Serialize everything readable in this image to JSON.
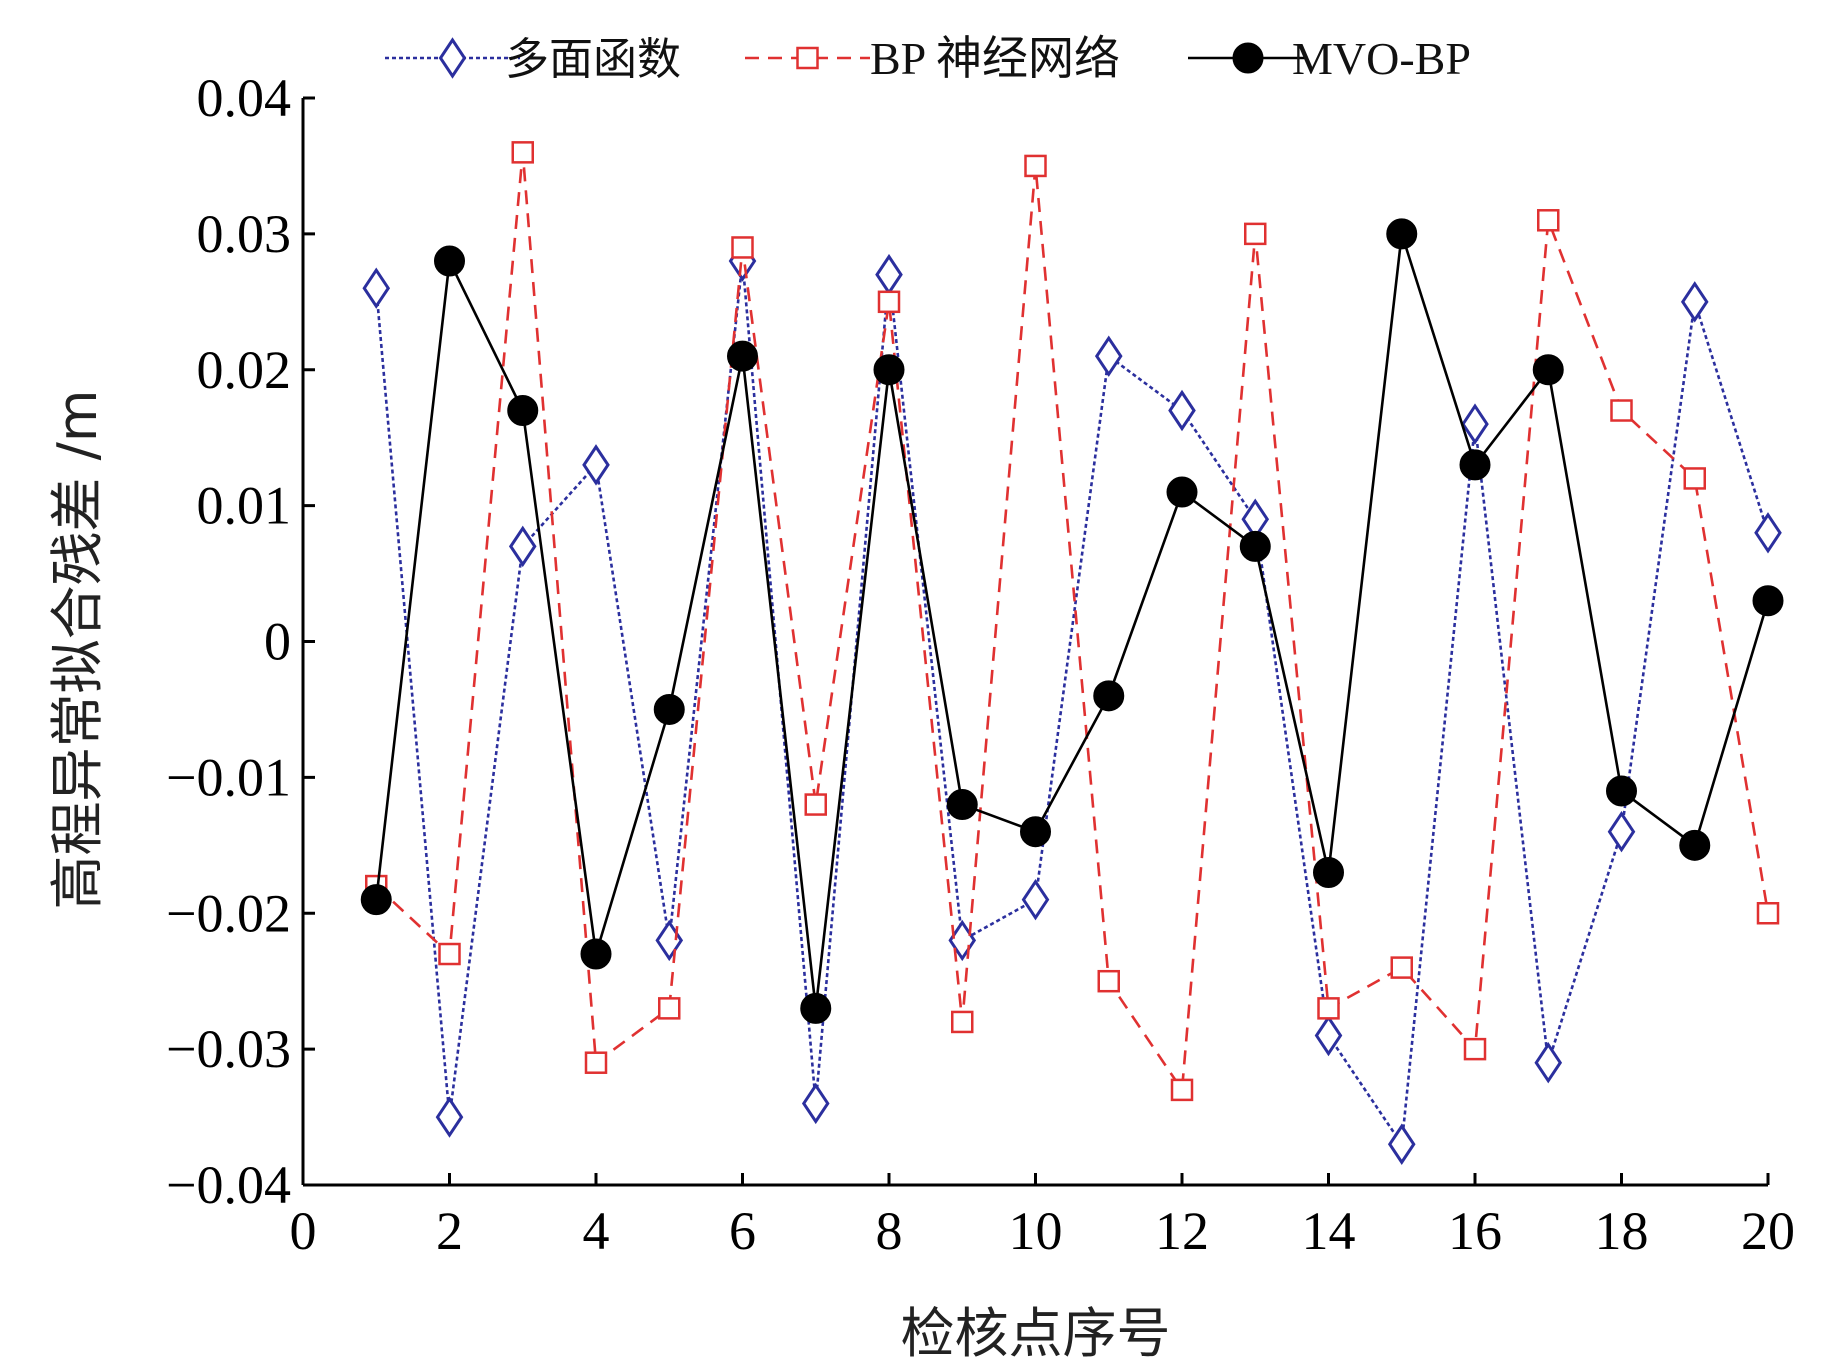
{
  "chart_data": {
    "type": "line",
    "title": "",
    "xlabel": "检核点序号",
    "ylabel": "高程异常拟合残差 /m",
    "xlim": [
      0,
      20
    ],
    "ylim": [
      -0.04,
      0.04
    ],
    "x_ticks": [
      0,
      2,
      4,
      6,
      8,
      10,
      12,
      14,
      16,
      18,
      20
    ],
    "x_tick_labels": [
      "0",
      "2",
      "4",
      "6",
      "8",
      "10",
      "12",
      "14",
      "16",
      "18",
      "20"
    ],
    "y_ticks": [
      0.04,
      0.03,
      0.02,
      0.01,
      0,
      -0.01,
      -0.02,
      -0.03,
      -0.04
    ],
    "y_tick_labels": [
      "0.04",
      "0.03",
      "0.02",
      "0.01",
      "0",
      "−0.01",
      "−0.02",
      "−0.03",
      "−0.04"
    ],
    "legend_position": "top",
    "x": [
      1,
      2,
      3,
      4,
      5,
      6,
      7,
      8,
      9,
      10,
      11,
      12,
      13,
      14,
      15,
      16,
      17,
      18,
      19,
      20
    ],
    "series": [
      {
        "name": "多面函数",
        "color": "#2b2f9e",
        "marker": "diamond",
        "line_style": "dotted",
        "values": [
          0.026,
          -0.035,
          0.007,
          0.013,
          -0.022,
          0.028,
          -0.034,
          0.027,
          -0.022,
          -0.019,
          0.021,
          0.017,
          0.009,
          -0.029,
          -0.037,
          0.016,
          -0.031,
          -0.014,
          0.025,
          0.008
        ]
      },
      {
        "name": "BP 神经网络",
        "color": "#e03131",
        "marker": "square",
        "line_style": "dashed",
        "values": [
          -0.018,
          -0.023,
          0.036,
          -0.031,
          -0.027,
          0.029,
          -0.012,
          0.025,
          -0.028,
          0.035,
          -0.025,
          -0.033,
          0.03,
          -0.027,
          -0.024,
          -0.03,
          0.031,
          0.017,
          0.012,
          -0.02
        ]
      },
      {
        "name": "MVO-BP",
        "color": "#000000",
        "marker": "circle",
        "line_style": "solid",
        "values": [
          -0.019,
          0.028,
          0.017,
          -0.023,
          -0.005,
          0.021,
          -0.027,
          0.02,
          -0.012,
          -0.014,
          -0.004,
          0.011,
          0.007,
          -0.017,
          0.03,
          0.013,
          0.02,
          -0.011,
          -0.015,
          0.003
        ]
      }
    ]
  }
}
